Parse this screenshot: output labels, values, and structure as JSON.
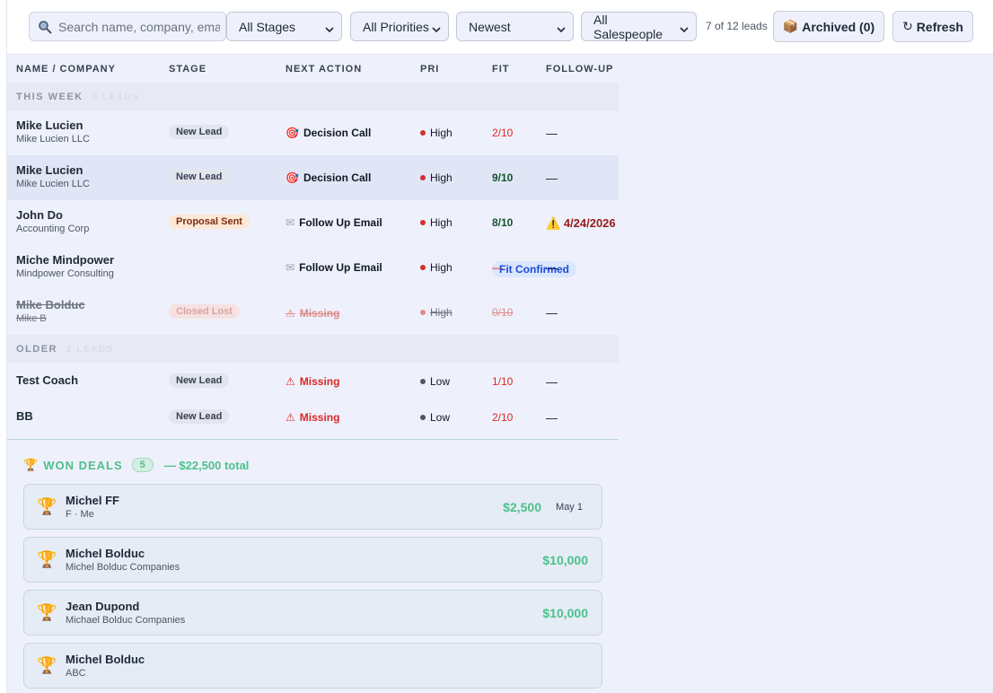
{
  "toolbar": {
    "search_placeholder": "Search name, company, email",
    "stage_filter": "All Stages",
    "priority_filter": "All Priorities",
    "sort": "Newest",
    "salesperson_filter": "All Salespeople",
    "lead_count": "7 of 12 leads",
    "archived_label": "Archived (0)",
    "refresh_label": "Refresh"
  },
  "table": {
    "headers": [
      "NAME / COMPANY",
      "STAGE",
      "NEXT ACTION",
      "PRI",
      "FIT",
      "FOLLOW-UP"
    ],
    "groups": [
      {
        "label": "THIS WEEK",
        "count": "5 LEADS",
        "rows": [
          {
            "name": "Mike Lucien",
            "company": "Mike Lucien LLC",
            "stage": "New Lead",
            "action": "Decision Call",
            "priority": "High",
            "fit": "2/10",
            "followup": "—"
          },
          {
            "name": "Mike Lucien",
            "company": "Mike Lucien LLC",
            "stage": "New Lead",
            "action": "Decision Call",
            "priority": "High",
            "fit": "9/10",
            "followup": "—"
          },
          {
            "name": "John Do",
            "company": "Accounting Corp",
            "stage": "Proposal Sent",
            "action": "Follow Up Email",
            "priority": "High",
            "fit": "8/10",
            "followup": "4/24/2026"
          },
          {
            "name": "Miche Mindpower",
            "company": "Mindpower Consulting",
            "stage": "Fit Confirmed",
            "action": "Follow Up Email",
            "priority": "High",
            "fit": "—",
            "followup": "—"
          },
          {
            "name": "Mike Bolduc",
            "company": "Mike B",
            "stage": "Closed Lost",
            "action": "Missing",
            "priority": "High",
            "fit": "0/10",
            "followup": "—"
          }
        ]
      },
      {
        "label": "OLDER",
        "count": "2 LEADS",
        "rows": [
          {
            "name": "Test Coach",
            "stage": "New Lead",
            "action": "Missing",
            "priority": "Low",
            "fit": "1/10",
            "followup": "—"
          },
          {
            "name": "BB",
            "stage": "New Lead",
            "action": "Missing",
            "priority": "Low",
            "fit": "2/10",
            "followup": "—"
          }
        ]
      }
    ]
  },
  "won": {
    "title": "WON DEALS",
    "count": "5",
    "total": "— $22,500 total",
    "deals": [
      {
        "name": "Michel FF",
        "company": "F · Me",
        "amount": "$2,500",
        "date": "May 1"
      },
      {
        "name": "Michel Bolduc",
        "company": "Michel Bolduc Companies",
        "amount": "$10,000"
      },
      {
        "name": "Jean Dupond",
        "company": "Michael Bolduc Companies",
        "amount": "$10,000"
      },
      {
        "name": "Michel Bolduc",
        "company": "ABC"
      }
    ]
  },
  "colors": {
    "high_dot": "#d32f2f",
    "low_dot": "#4b5563",
    "won_green": "#4ec08a",
    "missing_red": "#dc2626"
  }
}
